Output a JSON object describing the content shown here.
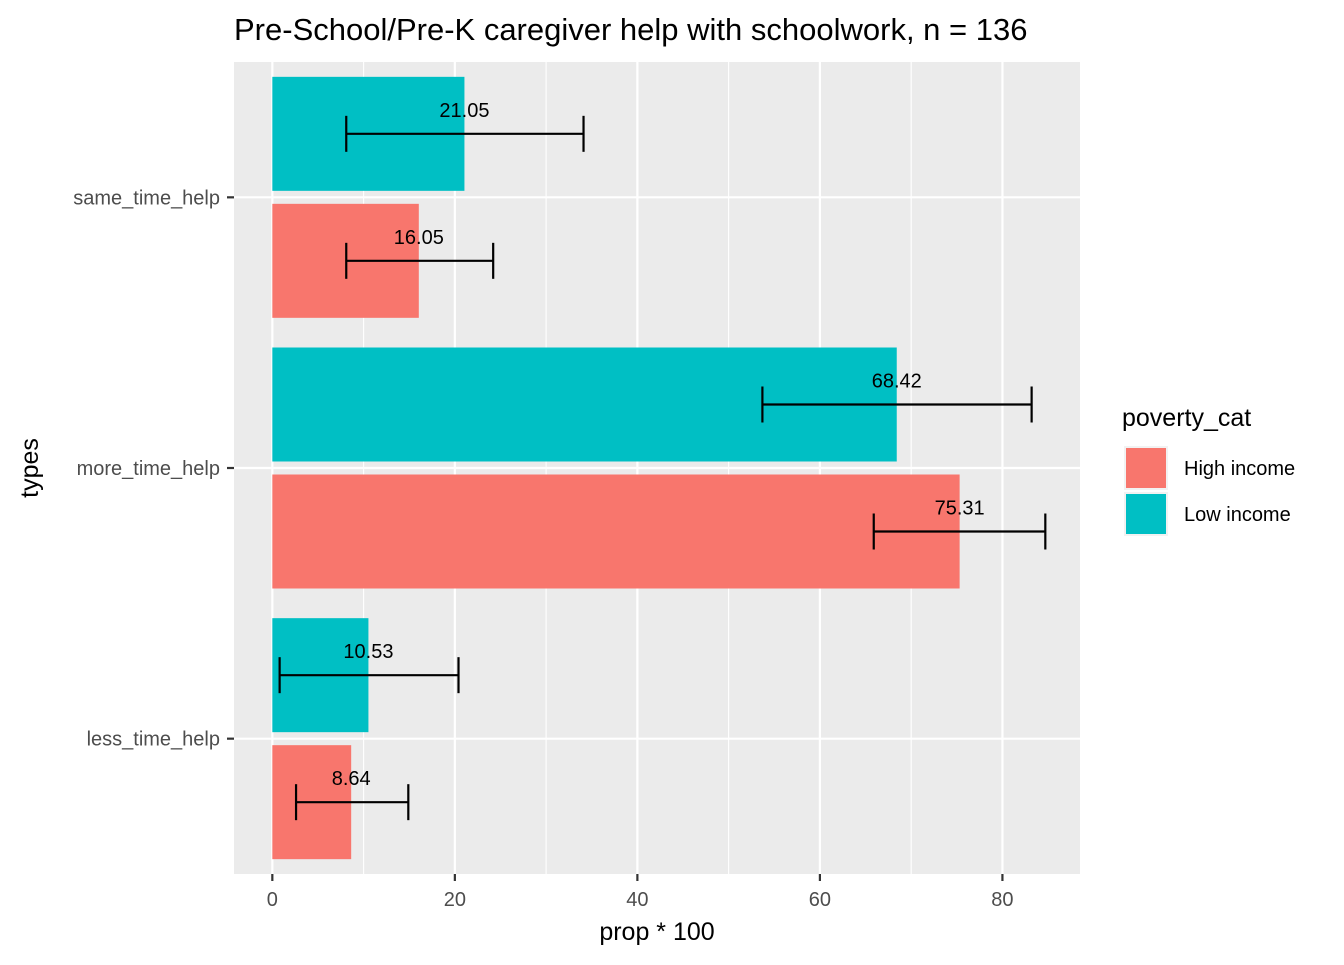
{
  "chart_data": {
    "type": "bar",
    "orientation": "horizontal",
    "title": "Pre-School/Pre-K caregiver help with schoolwork, n = 136",
    "xlabel": "prop * 100",
    "ylabel": "types",
    "xlim": [
      -4.2,
      88.5
    ],
    "x_ticks": [
      0,
      20,
      40,
      60,
      80
    ],
    "grid": true,
    "categories": [
      "same_time_help",
      "more_time_help",
      "less_time_help"
    ],
    "legend": {
      "title": "poverty_cat",
      "position": "right"
    },
    "series": [
      {
        "name": "High income",
        "color": "#F8766D",
        "values": [
          16.05,
          75.31,
          8.64
        ],
        "labels": [
          "16.05",
          "75.31",
          "8.64"
        ],
        "error_low": [
          8.1,
          65.9,
          2.6
        ],
        "error_high": [
          24.2,
          84.7,
          14.9
        ]
      },
      {
        "name": "Low income",
        "color": "#00BFC4",
        "values": [
          21.05,
          68.42,
          10.53
        ],
        "labels": [
          "21.05",
          "68.42",
          "10.53"
        ],
        "error_low": [
          8.1,
          53.7,
          0.8
        ],
        "error_high": [
          34.1,
          83.2,
          20.4
        ]
      }
    ]
  }
}
